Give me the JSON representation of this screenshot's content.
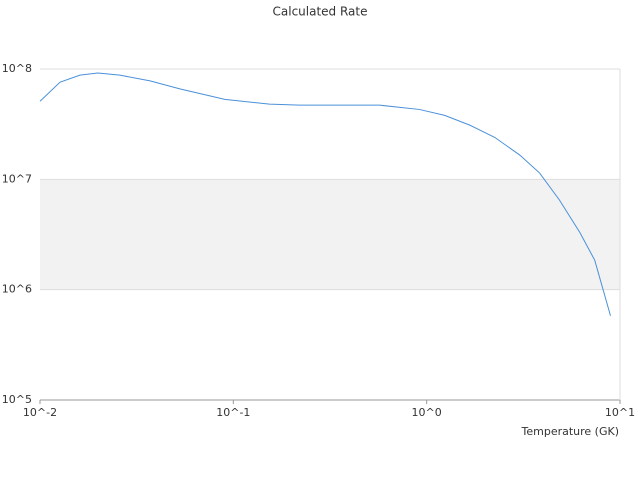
{
  "chart_data": {
    "type": "line",
    "title": "Calculated Rate",
    "x_label": "Temperature (GK)",
    "log_x": true,
    "log_y": true,
    "grid": true,
    "alternate_bands": true,
    "band_color": "#f2f2f2",
    "xlim": [
      0.01,
      10
    ],
    "ylim": [
      100000,
      100000000
    ],
    "xticks": [
      {
        "value": 0.01,
        "label": "10^-2"
      },
      {
        "value": 0.1,
        "label": "10^-1"
      },
      {
        "value": 1,
        "label": "10^0"
      },
      {
        "value": 10,
        "label": "10^1"
      }
    ],
    "yticks": [
      {
        "value": 100000,
        "label": "10^5"
      },
      {
        "value": 1000000,
        "label": "10^6"
      },
      {
        "value": 10000000,
        "label": "10^7"
      },
      {
        "value": 100000000,
        "label": "10^8"
      }
    ],
    "series": [
      {
        "color": "#4a90d9",
        "x": [
          0.01,
          0.0127,
          0.0161,
          0.0199,
          0.0259,
          0.0371,
          0.0529,
          0.0903,
          0.154,
          0.22,
          0.572,
          0.916,
          1.24,
          1.67,
          2.25,
          3.03,
          3.84,
          4.86,
          6.2,
          7.4,
          8.93
        ],
        "values": [
          51000000,
          76000000,
          88000000,
          92000000,
          88000000,
          78000000,
          66000000,
          53000000,
          48000000,
          47000000,
          47000000,
          43000000,
          38000000,
          31000000,
          24000000,
          16600000,
          11400000,
          6500000,
          3300000,
          1850000,
          580000
        ]
      }
    ]
  }
}
